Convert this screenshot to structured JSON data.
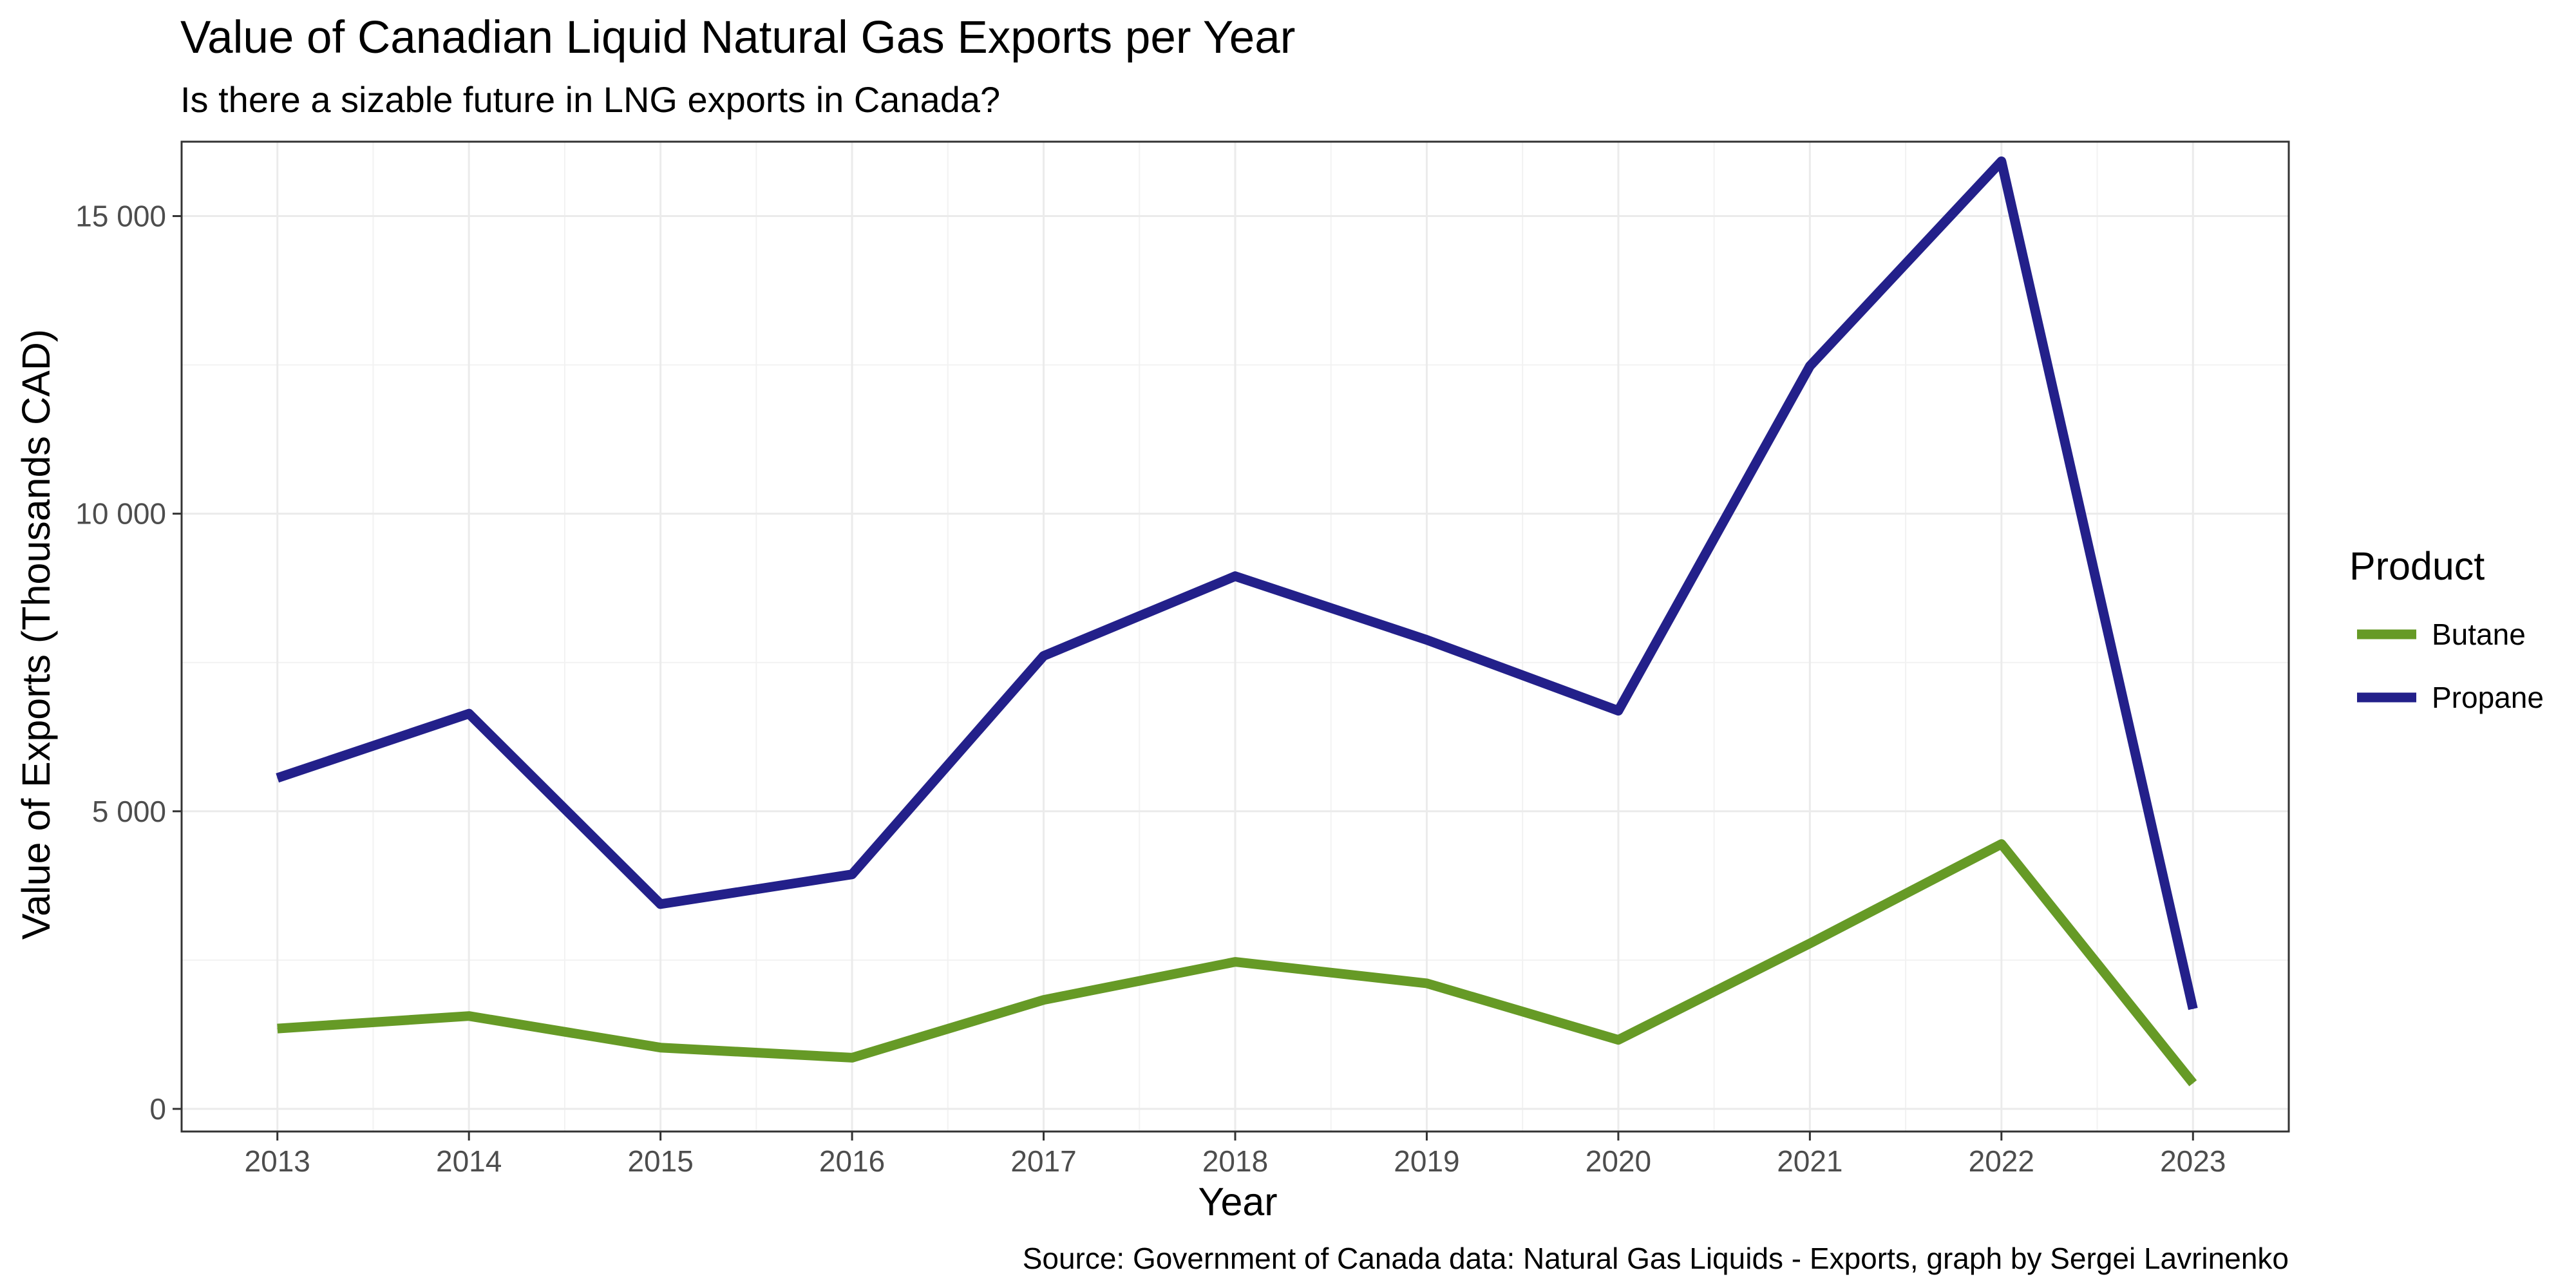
{
  "chart_data": {
    "type": "line",
    "title": "Value of Canadian Liquid Natural Gas Exports per Year",
    "subtitle": "Is there a sizable future in LNG exports in Canada?",
    "xlabel": "Year",
    "ylabel": "Value of Exports (Thousands CAD)",
    "caption": "Source: Government of Canada data: Natural Gas Liquids - Exports, graph by Sergei Lavrinenko",
    "x": [
      2013,
      2014,
      2015,
      2016,
      2017,
      2018,
      2019,
      2020,
      2021,
      2022,
      2023
    ],
    "x_ticks": [
      "2013",
      "2014",
      "2015",
      "2016",
      "2017",
      "2018",
      "2019",
      "2020",
      "2021",
      "2022",
      "2023"
    ],
    "y_ticks": [
      {
        "value": 0,
        "label": "0"
      },
      {
        "value": 5000,
        "label": "5 000"
      },
      {
        "value": 10000,
        "label": "10 000"
      },
      {
        "value": 15000,
        "label": "15 000"
      }
    ],
    "xlim": [
      2012.5,
      2023.5
    ],
    "ylim": [
      -380,
      16250
    ],
    "grid": true,
    "legend_title": "Product",
    "legend_position": "right",
    "series": [
      {
        "name": "Butane",
        "color": "#669A26",
        "values": [
          1350,
          1560,
          1030,
          860,
          1830,
          2470,
          2110,
          1160,
          2780,
          4450,
          430
        ]
      },
      {
        "name": "Propane",
        "color": "#23208A",
        "values": [
          5560,
          6640,
          3440,
          3940,
          7610,
          8950,
          7880,
          6690,
          12480,
          15920,
          1680
        ]
      }
    ]
  }
}
